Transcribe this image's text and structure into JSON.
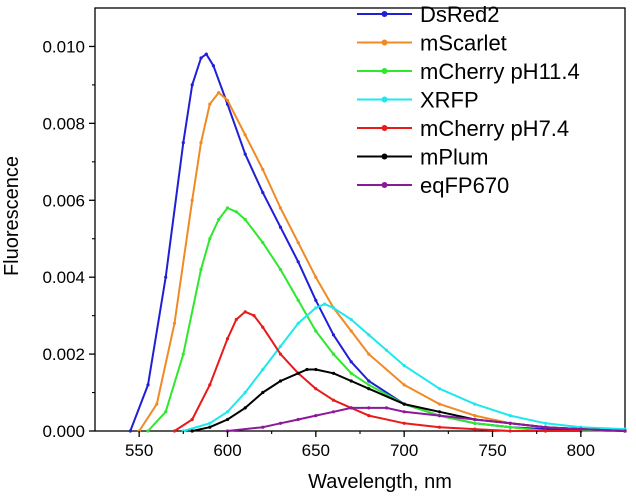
{
  "chart_data": {
    "type": "line",
    "title": "",
    "xlabel": "Wavelength, nm",
    "ylabel": "Fluorescence",
    "xlim": [
      525,
      825
    ],
    "ylim": [
      0,
      0.011
    ],
    "x_ticks": [
      "550",
      "600",
      "650",
      "700",
      "750",
      "800"
    ],
    "y_ticks": [
      "0.000",
      "0.002",
      "0.004",
      "0.006",
      "0.008",
      "0.010"
    ],
    "legend_position": "top-right",
    "grid": false,
    "series": [
      {
        "name": "DsRed2",
        "color": "#1f1fd6",
        "x": [
          545,
          555,
          565,
          575,
          580,
          585,
          588,
          592,
          600,
          610,
          620,
          630,
          640,
          650,
          660,
          670,
          680,
          700,
          720,
          740,
          760,
          780,
          800,
          825
        ],
        "y": [
          0.0,
          0.0012,
          0.004,
          0.0075,
          0.009,
          0.0097,
          0.0098,
          0.0095,
          0.0085,
          0.0072,
          0.0062,
          0.0053,
          0.0044,
          0.0034,
          0.0025,
          0.0018,
          0.0013,
          0.0007,
          0.0004,
          0.0002,
          0.0001,
          5e-05,
          0.0,
          0.0
        ]
      },
      {
        "name": "mScarlet",
        "color": "#f08a24",
        "x": [
          550,
          560,
          570,
          580,
          585,
          590,
          595,
          600,
          610,
          620,
          630,
          640,
          650,
          660,
          670,
          680,
          700,
          720,
          740,
          760,
          780,
          800,
          825
        ],
        "y": [
          0.0,
          0.0007,
          0.0028,
          0.006,
          0.0075,
          0.0085,
          0.0088,
          0.0086,
          0.0077,
          0.0068,
          0.0058,
          0.0049,
          0.004,
          0.0032,
          0.0026,
          0.002,
          0.0012,
          0.0007,
          0.0004,
          0.0002,
          0.0001,
          5e-05,
          0.0
        ]
      },
      {
        "name": "mCherry pH11.4",
        "color": "#2ee82e",
        "x": [
          555,
          565,
          575,
          585,
          590,
          595,
          600,
          605,
          610,
          620,
          630,
          640,
          650,
          660,
          670,
          680,
          700,
          720,
          740,
          760,
          780,
          800,
          825
        ],
        "y": [
          0.0,
          0.0005,
          0.002,
          0.0042,
          0.005,
          0.0055,
          0.0058,
          0.0057,
          0.0055,
          0.0049,
          0.0042,
          0.0034,
          0.0026,
          0.002,
          0.0015,
          0.0012,
          0.0007,
          0.0004,
          0.0002,
          0.0001,
          0.0,
          0.0,
          0.0
        ]
      },
      {
        "name": "XRFP",
        "color": "#1ee8ec",
        "x": [
          575,
          590,
          600,
          610,
          620,
          630,
          640,
          650,
          655,
          660,
          670,
          680,
          690,
          700,
          720,
          740,
          760,
          780,
          800,
          825
        ],
        "y": [
          0.0,
          0.0002,
          0.0005,
          0.001,
          0.0016,
          0.0022,
          0.0028,
          0.0032,
          0.0033,
          0.0032,
          0.0029,
          0.0025,
          0.0021,
          0.0017,
          0.0011,
          0.0007,
          0.0004,
          0.0002,
          0.0001,
          5e-05
        ]
      },
      {
        "name": "mCherry pH7.4",
        "color": "#e81a1a",
        "x": [
          570,
          580,
          590,
          600,
          605,
          610,
          615,
          620,
          630,
          640,
          650,
          660,
          670,
          680,
          700,
          720,
          740,
          760,
          780,
          800
        ],
        "y": [
          0.0,
          0.0003,
          0.0012,
          0.0024,
          0.0029,
          0.0031,
          0.003,
          0.0027,
          0.002,
          0.0015,
          0.0011,
          0.0008,
          0.0006,
          0.0004,
          0.0002,
          0.0001,
          5e-05,
          0.0,
          0.0,
          0.0
        ]
      },
      {
        "name": "mPlum",
        "color": "#000000",
        "x": [
          580,
          590,
          600,
          610,
          620,
          630,
          640,
          645,
          650,
          660,
          670,
          680,
          700,
          720,
          740,
          760,
          780,
          800,
          825
        ],
        "y": [
          0.0,
          0.0001,
          0.0003,
          0.0006,
          0.001,
          0.0013,
          0.0015,
          0.0016,
          0.0016,
          0.0015,
          0.0013,
          0.0011,
          0.0007,
          0.0005,
          0.0003,
          0.0002,
          0.0001,
          5e-05,
          0.0
        ]
      },
      {
        "name": "eqFP670",
        "color": "#8a1a9a",
        "x": [
          600,
          620,
          630,
          640,
          650,
          660,
          670,
          680,
          690,
          700,
          720,
          740,
          760,
          780,
          800,
          825
        ],
        "y": [
          0.0,
          0.0001,
          0.0002,
          0.0003,
          0.0004,
          0.0005,
          0.0006,
          0.0006,
          0.0006,
          0.0005,
          0.0004,
          0.0003,
          0.0002,
          0.0001,
          5e-05,
          0.0
        ]
      }
    ]
  }
}
